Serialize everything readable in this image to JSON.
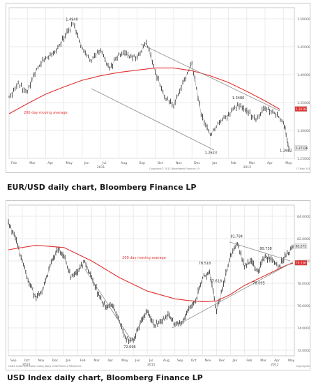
{
  "captions": {
    "chart1": "EUR/USD daily chart, Bloomberg Finance LP",
    "chart2": "USD Index daily chart, Bloomberg Finance LP"
  },
  "colors": {
    "price_line": "#3a3a3a",
    "moving_average": "#e03030",
    "trendline": "#8c8c8c",
    "grid": "#e3e3e3",
    "last_price_tag_primary": "#e8e8e8",
    "last_price_tag_ma": "#e03030"
  },
  "chart_data": [
    {
      "type": "line",
      "title": "",
      "xlabel": "",
      "ylabel": "",
      "ylim": [
        1.25,
        1.52
      ],
      "grid": true,
      "x_tick_labels": [
        "Feb",
        "Mar",
        "Apr",
        "May",
        "Jun",
        "Jul",
        "Aug",
        "Sep",
        "Oct",
        "Nov",
        "Dec",
        "Jan",
        "Feb",
        "Mar",
        "Apr",
        "May"
      ],
      "year_labels": [
        "2011",
        "2012"
      ],
      "y_tick_labels": [
        "1.50000",
        "1.45000",
        "1.40000",
        "1.35000",
        "1.30000",
        "1.25000"
      ],
      "y_tick_values": [
        1.5,
        1.45,
        1.4,
        1.35,
        1.3,
        1.25
      ],
      "series": [
        {
          "x": [
            0,
            0.5,
            1,
            1.5,
            2,
            2.5,
            3,
            3.5,
            4,
            4.5,
            5,
            5.5,
            6,
            6.5,
            7,
            7.5,
            8,
            8.5,
            9,
            9.5,
            10,
            10.5,
            11,
            11.5,
            12,
            12.5,
            13,
            13.5,
            14,
            14.5,
            15,
            15.3
          ],
          "values": [
            1.36,
            1.385,
            1.37,
            1.41,
            1.43,
            1.44,
            1.465,
            1.492,
            1.448,
            1.425,
            1.445,
            1.41,
            1.438,
            1.435,
            1.43,
            1.458,
            1.405,
            1.36,
            1.345,
            1.385,
            1.42,
            1.33,
            1.292,
            1.315,
            1.328,
            1.346,
            1.335,
            1.32,
            1.34,
            1.332,
            1.315,
            1.268
          ]
        },
        {
          "name": "200 day moving average",
          "x": [
            0,
            1,
            2,
            3,
            4,
            5,
            6,
            7,
            8,
            9,
            10,
            11,
            12,
            13,
            14,
            14.8
          ],
          "values": [
            1.33,
            1.348,
            1.365,
            1.378,
            1.39,
            1.398,
            1.404,
            1.408,
            1.412,
            1.412,
            1.407,
            1.398,
            1.386,
            1.37,
            1.353,
            1.338
          ]
        }
      ],
      "trendlines": [
        {
          "x": [
            7.2,
            14.8
          ],
          "values": [
            1.455,
            1.335
          ]
        },
        {
          "x": [
            4.5,
            11.2
          ],
          "values": [
            1.375,
            1.265
          ]
        }
      ],
      "annotations": [
        {
          "text": "1.4940",
          "x": 3.1,
          "y": 1.497
        },
        {
          "text": "1.3486",
          "x": 12.2,
          "y": 1.356
        },
        {
          "text": "1.2623",
          "x": 10.7,
          "y": 1.258
        },
        {
          "text": "1.2682",
          "x": 14.8,
          "y": 1.262
        },
        {
          "text": "200 day moving average",
          "x": 0.8,
          "y": 1.33
        }
      ],
      "last_values": [
        "1.32162",
        "1.27126"
      ],
      "source_text": "Copyright© 2012 Bloomberg Finance L.P.",
      "footer_right": "17-May-2012 13:41:00"
    },
    {
      "type": "line",
      "title": "",
      "xlabel": "",
      "ylabel": "",
      "ylim": [
        71.5,
        85.0
      ],
      "grid": true,
      "x_tick_labels": [
        "Sep",
        "Oct",
        "Nov",
        "Dec",
        "Jan",
        "Feb",
        "Mar",
        "Apr",
        "May",
        "Jun",
        "Jul",
        "Aug",
        "Sep",
        "Oct",
        "Nov",
        "Dec",
        "Jan",
        "Feb",
        "Mar",
        "Apr",
        "May"
      ],
      "year_labels": [
        "2010",
        "2011",
        "2012"
      ],
      "y_tick_labels": [
        "84.0000",
        "82.0000",
        "80.0000",
        "78.0000",
        "76.0000",
        "74.0000",
        "72.0000"
      ],
      "y_tick_values": [
        84,
        82,
        80,
        78,
        76,
        74,
        72
      ],
      "series": [
        {
          "x": [
            0,
            0.5,
            1,
            1.5,
            2,
            2.5,
            3,
            3.5,
            4,
            4.5,
            5,
            5.5,
            6,
            6.5,
            7,
            7.5,
            8,
            8.5,
            9,
            9.5,
            10,
            10.5,
            11,
            11.5,
            12,
            12.5,
            13,
            13.5,
            14,
            14.5,
            15,
            15.5,
            16,
            16.5,
            17,
            17.5,
            18,
            18.5,
            19,
            19.5,
            20,
            20.5
          ],
          "values": [
            83.5,
            82.0,
            80.0,
            78.0,
            76.7,
            77.5,
            79.5,
            81.0,
            80.5,
            78.5,
            79.0,
            80.0,
            78.5,
            77.0,
            75.8,
            76.0,
            74.5,
            73.0,
            72.8,
            74.5,
            75.5,
            74.2,
            74.5,
            75.2,
            74.3,
            74.5,
            75.8,
            76.5,
            78.5,
            79.0,
            75.5,
            78.0,
            80.5,
            81.5,
            79.5,
            80.0,
            79.0,
            80.5,
            80.0,
            79.5,
            80.5,
            81.3
          ]
        },
        {
          "name": "200 day moving average",
          "x": [
            0,
            2,
            4,
            6,
            8,
            10,
            12,
            13,
            14,
            15,
            16,
            17,
            18,
            19,
            20,
            20.5
          ],
          "values": [
            81.0,
            81.4,
            81.2,
            80.0,
            78.5,
            77.3,
            76.6,
            76.45,
            76.35,
            76.4,
            77.0,
            77.8,
            78.4,
            79.0,
            79.6,
            79.8
          ]
        }
      ],
      "trendlines": [
        {
          "x": [
            15.9,
            20.3
          ],
          "values": [
            81.7,
            80.0
          ]
        },
        {
          "x": [
            5.5,
            8.8
          ],
          "values": [
            79.3,
            73.0
          ]
        },
        {
          "x": [
            11.8,
            20.5
          ],
          "values": [
            74.0,
            79.9
          ]
        }
      ],
      "annotations": [
        {
          "text": "81.784",
          "x": 16.0,
          "y": 82.1
        },
        {
          "text": "80.738",
          "x": 18.1,
          "y": 81.0
        },
        {
          "text": "78.518",
          "x": 13.7,
          "y": 79.7
        },
        {
          "text": "77.618",
          "x": 14.5,
          "y": 78.1
        },
        {
          "text": "78.095",
          "x": 17.6,
          "y": 77.9
        },
        {
          "text": "72.696",
          "x": 8.3,
          "y": 72.2
        },
        {
          "text": "200 day moving average",
          "x": 8.2,
          "y": 80.2
        }
      ],
      "last_values": [
        "81.271",
        "79.536"
      ],
      "source_text": "USDX Index (US Dollar Index) Daily 01SEP2010-17MAY2012",
      "footer_right": "Copyright© 2012 Bloomberg Finance L.P."
    }
  ]
}
